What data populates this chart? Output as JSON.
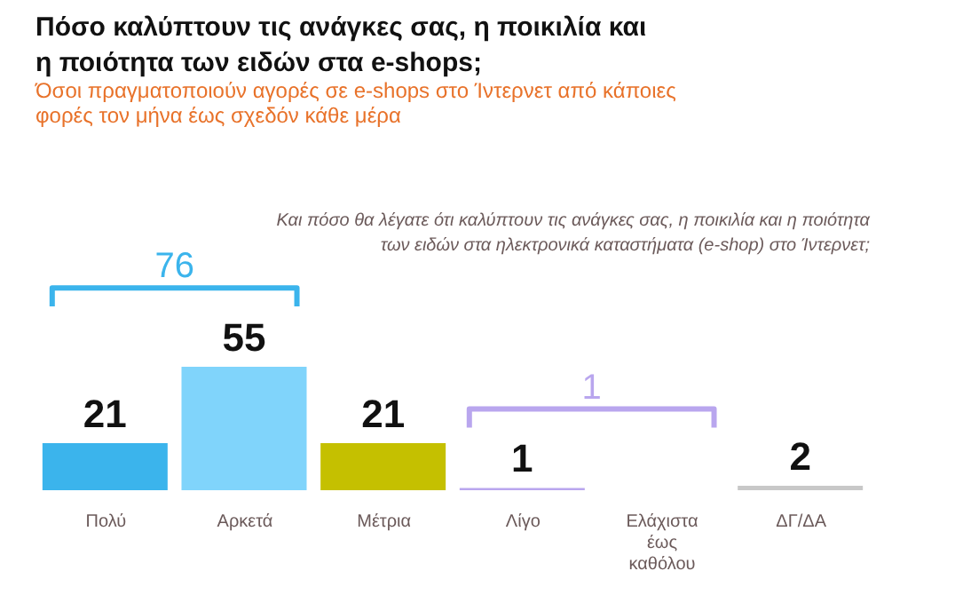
{
  "chart_data": {
    "type": "bar",
    "title": "Πόσο καλύπτουν τις ανάγκες σας, η ποικιλία και η ποιότητα των ειδών στα e-shops;",
    "subtitle": "Όσοι πραγματοποιούν αγορές σε e-shops στο Ίντερνετ από κάποιες φορές τον μήνα έως σχεδόν κάθε μέρα",
    "categories": [
      "Πολύ",
      "Αρκετά",
      "Μέτρια",
      "Λίγο",
      "Ελάχιστα έως καθόλου",
      "ΔΓ/ΔΑ"
    ],
    "values": [
      21,
      55,
      21,
      1,
      0,
      2
    ],
    "colors": [
      "#3bb4ec",
      "#80d4fb",
      "#c5c000",
      "#b9a6ee",
      "#b9a6ee",
      "#c8c8c8"
    ],
    "value_labels": [
      "21",
      "55",
      "21",
      "1",
      null,
      "2"
    ],
    "annotations": [
      "Και πόσο θα λέγατε ότι καλύπτουν τις ανάγκες σας, η ποικιλία και η ποιότητα των ειδών στα ηλεκτρονικά καταστήματα (e-shop) στο Ίντερνετ;",
      "76",
      "1"
    ],
    "grid": false
  }
}
